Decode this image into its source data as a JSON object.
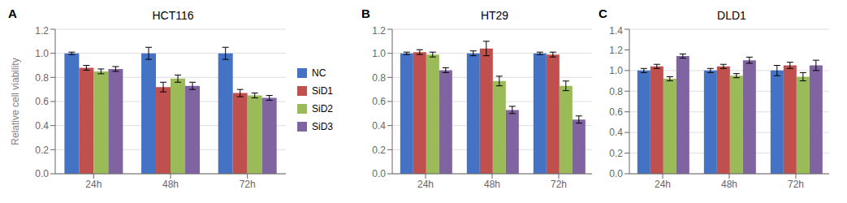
{
  "chart_data": [
    {
      "type": "bar",
      "title": "HCT116",
      "annotations": [
        "A"
      ],
      "ylabel": "Relative cell viability",
      "categories": [
        "24h",
        "48h",
        "72h"
      ],
      "series": [
        {
          "name": "NC",
          "color": "#4472C4",
          "values": [
            1.0,
            1.0,
            1.0
          ],
          "errors": [
            0.01,
            0.05,
            0.05
          ]
        },
        {
          "name": "SiD1",
          "color": "#C0504D",
          "values": [
            0.88,
            0.72,
            0.67
          ],
          "errors": [
            0.02,
            0.04,
            0.03
          ]
        },
        {
          "name": "SiD2",
          "color": "#9BBB59",
          "values": [
            0.85,
            0.79,
            0.65
          ],
          "errors": [
            0.02,
            0.03,
            0.02
          ]
        },
        {
          "name": "SiD3",
          "color": "#8064A2",
          "values": [
            0.87,
            0.73,
            0.63
          ],
          "errors": [
            0.02,
            0.03,
            0.02
          ]
        }
      ],
      "ylim": [
        0,
        1.2
      ],
      "yticks": [
        {
          "value": 0,
          "label": "0.0"
        },
        0.2,
        0.4,
        0.6,
        0.8,
        {
          "value": 1.0,
          "label": "1.0"
        },
        1.2
      ],
      "grid": true,
      "legend": "right"
    },
    {
      "type": "bar",
      "title": "HT29",
      "annotations": [
        "B"
      ],
      "categories": [
        "24h",
        "48h",
        "72h"
      ],
      "series": [
        {
          "name": "NC",
          "color": "#4472C4",
          "values": [
            1.0,
            1.0,
            1.0
          ],
          "errors": [
            0.01,
            0.02,
            0.01
          ]
        },
        {
          "name": "SiD1",
          "color": "#C0504D",
          "values": [
            1.01,
            1.04,
            0.99
          ],
          "errors": [
            0.02,
            0.06,
            0.02
          ]
        },
        {
          "name": "SiD2",
          "color": "#9BBB59",
          "values": [
            0.99,
            0.77,
            0.73
          ],
          "errors": [
            0.02,
            0.04,
            0.04
          ]
        },
        {
          "name": "SiD3",
          "color": "#8064A2",
          "values": [
            0.86,
            0.53,
            0.45
          ],
          "errors": [
            0.02,
            0.03,
            0.03
          ]
        }
      ],
      "ylim": [
        0,
        1.2
      ],
      "yticks": [
        {
          "value": 0,
          "label": "0.0"
        },
        0.2,
        0.4,
        0.6,
        0.8,
        {
          "value": 1.0,
          "label": "1.0"
        },
        1.2
      ],
      "grid": true
    },
    {
      "type": "bar",
      "title": "DLD1",
      "annotations": [
        "C"
      ],
      "categories": [
        "24h",
        "48h",
        "72h"
      ],
      "series": [
        {
          "name": "NC",
          "color": "#4472C4",
          "values": [
            1.0,
            1.0,
            1.0
          ],
          "errors": [
            0.02,
            0.02,
            0.05
          ]
        },
        {
          "name": "SiD1",
          "color": "#C0504D",
          "values": [
            1.04,
            1.04,
            1.05
          ],
          "errors": [
            0.02,
            0.02,
            0.03
          ]
        },
        {
          "name": "SiD2",
          "color": "#9BBB59",
          "values": [
            0.92,
            0.95,
            0.94
          ],
          "errors": [
            0.02,
            0.02,
            0.04
          ]
        },
        {
          "name": "SiD3",
          "color": "#8064A2",
          "values": [
            1.14,
            1.1,
            1.05
          ],
          "errors": [
            0.02,
            0.03,
            0.05
          ]
        }
      ],
      "ylim": [
        0,
        1.4
      ],
      "yticks": [
        {
          "value": 0,
          "label": "0.0"
        },
        0.2,
        0.4,
        0.6,
        0.8,
        {
          "value": 1.0,
          "label": "1.0"
        },
        1.2,
        1.4
      ],
      "grid": true
    }
  ]
}
